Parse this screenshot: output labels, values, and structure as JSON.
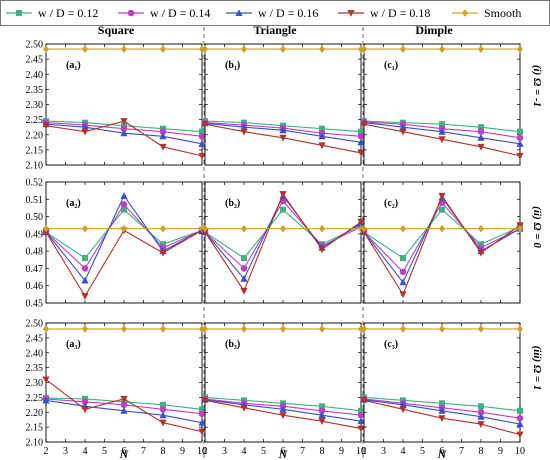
{
  "figure": {
    "legend": [
      {
        "label": "w / D = 0.12",
        "color": "#3fb27f",
        "marker": "square"
      },
      {
        "label": "w / D = 0.14",
        "color": "#c03fc6",
        "marker": "circle"
      },
      {
        "label": "w / D = 0.16",
        "color": "#3553c9",
        "marker": "triangle-up"
      },
      {
        "label": "w / D = 0.18",
        "color": "#b2322c",
        "marker": "triangle-down"
      },
      {
        "label": "Smooth",
        "color": "#c9a227",
        "marker": "diamond"
      }
    ],
    "column_titles": [
      "Square",
      "Triangle",
      "Dimple"
    ],
    "row_labels": [
      "(i) Ω = -1",
      "(ii) Ω = 0",
      "(iii) Ω = 1"
    ],
    "x_axis_label": "N"
  },
  "chart_data": [
    {
      "id": "a1",
      "type": "line",
      "panel_label": "(a₁)",
      "column": "Square",
      "row": "(i) Ω = -1",
      "x": [
        2,
        4,
        6,
        8,
        10
      ],
      "xlim": [
        2,
        10
      ],
      "ylim": [
        2.1,
        2.5
      ],
      "yticks": [
        2.1,
        2.15,
        2.2,
        2.25,
        2.3,
        2.35,
        2.4,
        2.45,
        2.5
      ],
      "xticks": [
        2,
        3,
        4,
        5,
        6,
        7,
        8,
        9,
        10
      ],
      "series": [
        {
          "name": "w / D = 0.12",
          "values": [
            2.245,
            2.24,
            2.23,
            2.22,
            2.21
          ]
        },
        {
          "name": "w / D = 0.14",
          "values": [
            2.24,
            2.232,
            2.22,
            2.21,
            2.195
          ]
        },
        {
          "name": "w / D = 0.16",
          "values": [
            2.235,
            2.225,
            2.205,
            2.195,
            2.17
          ]
        },
        {
          "name": "w / D = 0.18",
          "values": [
            2.23,
            2.21,
            2.245,
            2.16,
            2.13
          ]
        },
        {
          "name": "Smooth",
          "values": [
            2.483,
            2.483,
            2.483,
            2.483,
            2.483
          ]
        }
      ]
    },
    {
      "id": "b1",
      "type": "line",
      "panel_label": "(b₁)",
      "column": "Triangle",
      "row": "(i) Ω = -1",
      "x": [
        2,
        4,
        6,
        8,
        10
      ],
      "xlim": [
        2,
        10
      ],
      "ylim": [
        2.1,
        2.5
      ],
      "yticks": [
        2.1,
        2.15,
        2.2,
        2.25,
        2.3,
        2.35,
        2.4,
        2.45,
        2.5
      ],
      "xticks": [
        2,
        3,
        4,
        5,
        6,
        7,
        8,
        9,
        10
      ],
      "series": [
        {
          "name": "w / D = 0.12",
          "values": [
            2.245,
            2.24,
            2.23,
            2.22,
            2.21
          ]
        },
        {
          "name": "w / D = 0.14",
          "values": [
            2.24,
            2.232,
            2.222,
            2.205,
            2.195
          ]
        },
        {
          "name": "w / D = 0.16",
          "values": [
            2.238,
            2.225,
            2.215,
            2.195,
            2.175
          ]
        },
        {
          "name": "w / D = 0.18",
          "values": [
            2.235,
            2.21,
            2.19,
            2.165,
            2.14
          ]
        },
        {
          "name": "Smooth",
          "values": [
            2.483,
            2.483,
            2.483,
            2.483,
            2.483
          ]
        }
      ]
    },
    {
      "id": "c1",
      "type": "line",
      "panel_label": "(c₁)",
      "column": "Dimple",
      "row": "(i) Ω = -1",
      "x": [
        2,
        4,
        6,
        8,
        10
      ],
      "xlim": [
        2,
        10
      ],
      "ylim": [
        2.1,
        2.5
      ],
      "yticks": [
        2.1,
        2.15,
        2.2,
        2.25,
        2.3,
        2.35,
        2.4,
        2.45,
        2.5
      ],
      "xticks": [
        2,
        3,
        4,
        5,
        6,
        7,
        8,
        9,
        10
      ],
      "series": [
        {
          "name": "w / D = 0.12",
          "values": [
            2.245,
            2.24,
            2.235,
            2.225,
            2.21
          ]
        },
        {
          "name": "w / D = 0.14",
          "values": [
            2.242,
            2.235,
            2.22,
            2.21,
            2.19
          ]
        },
        {
          "name": "w / D = 0.16",
          "values": [
            2.24,
            2.225,
            2.21,
            2.19,
            2.17
          ]
        },
        {
          "name": "w / D = 0.18",
          "values": [
            2.235,
            2.21,
            2.185,
            2.16,
            2.13
          ]
        },
        {
          "name": "Smooth",
          "values": [
            2.483,
            2.483,
            2.483,
            2.483,
            2.483
          ]
        }
      ]
    },
    {
      "id": "a2",
      "type": "line",
      "panel_label": "(a₂)",
      "column": "Square",
      "row": "(ii) Ω = 0",
      "x": [
        2,
        4,
        6,
        8,
        10
      ],
      "xlim": [
        2,
        10
      ],
      "ylim": [
        0.45,
        0.52
      ],
      "yticks": [
        0.45,
        0.46,
        0.47,
        0.48,
        0.49,
        0.5,
        0.51,
        0.52
      ],
      "xticks": [
        2,
        3,
        4,
        5,
        6,
        7,
        8,
        9,
        10
      ],
      "series": [
        {
          "name": "w / D = 0.12",
          "values": [
            0.491,
            0.476,
            0.504,
            0.484,
            0.492
          ]
        },
        {
          "name": "w / D = 0.14",
          "values": [
            0.491,
            0.47,
            0.507,
            0.482,
            0.492
          ]
        },
        {
          "name": "w / D = 0.16",
          "values": [
            0.491,
            0.463,
            0.512,
            0.48,
            0.492
          ]
        },
        {
          "name": "w / D = 0.18",
          "values": [
            0.491,
            0.454,
            0.492,
            0.479,
            0.492
          ]
        },
        {
          "name": "Smooth",
          "values": [
            0.493,
            0.493,
            0.493,
            0.493,
            0.493
          ]
        }
      ]
    },
    {
      "id": "b2",
      "type": "line",
      "panel_label": "(b₂)",
      "column": "Triangle",
      "row": "(ii) Ω = 0",
      "x": [
        2,
        4,
        6,
        8,
        10
      ],
      "xlim": [
        2,
        10
      ],
      "ylim": [
        0.45,
        0.52
      ],
      "yticks": [
        0.45,
        0.46,
        0.47,
        0.48,
        0.49,
        0.5,
        0.51,
        0.52
      ],
      "xticks": [
        2,
        3,
        4,
        5,
        6,
        7,
        8,
        9,
        10
      ],
      "series": [
        {
          "name": "w / D = 0.12",
          "values": [
            0.491,
            0.476,
            0.504,
            0.484,
            0.495
          ]
        },
        {
          "name": "w / D = 0.14",
          "values": [
            0.491,
            0.47,
            0.509,
            0.483,
            0.494
          ]
        },
        {
          "name": "w / D = 0.16",
          "values": [
            0.491,
            0.464,
            0.512,
            0.482,
            0.496
          ]
        },
        {
          "name": "w / D = 0.18",
          "values": [
            0.491,
            0.457,
            0.513,
            0.481,
            0.497
          ]
        },
        {
          "name": "Smooth",
          "values": [
            0.493,
            0.493,
            0.493,
            0.493,
            0.493
          ]
        }
      ]
    },
    {
      "id": "c2",
      "type": "line",
      "panel_label": "(c₂)",
      "column": "Dimple",
      "row": "(ii) Ω = 0",
      "x": [
        2,
        4,
        6,
        8,
        10
      ],
      "xlim": [
        2,
        10
      ],
      "ylim": [
        0.45,
        0.52
      ],
      "yticks": [
        0.45,
        0.46,
        0.47,
        0.48,
        0.49,
        0.5,
        0.51,
        0.52
      ],
      "xticks": [
        2,
        3,
        4,
        5,
        6,
        7,
        8,
        9,
        10
      ],
      "series": [
        {
          "name": "w / D = 0.12",
          "values": [
            0.491,
            0.476,
            0.504,
            0.484,
            0.494
          ]
        },
        {
          "name": "w / D = 0.14",
          "values": [
            0.491,
            0.468,
            0.508,
            0.482,
            0.493
          ]
        },
        {
          "name": "w / D = 0.16",
          "values": [
            0.491,
            0.462,
            0.511,
            0.48,
            0.493
          ]
        },
        {
          "name": "w / D = 0.18",
          "values": [
            0.491,
            0.455,
            0.512,
            0.479,
            0.495
          ]
        },
        {
          "name": "Smooth",
          "values": [
            0.493,
            0.493,
            0.493,
            0.493,
            0.493
          ]
        }
      ]
    },
    {
      "id": "a3",
      "type": "line",
      "panel_label": "(a₃)",
      "column": "Square",
      "row": "(iii) Ω = 1",
      "x": [
        2,
        4,
        6,
        8,
        10
      ],
      "xlim": [
        2,
        10
      ],
      "ylim": [
        2.1,
        2.5
      ],
      "yticks": [
        2.1,
        2.15,
        2.2,
        2.25,
        2.3,
        2.35,
        2.4,
        2.45,
        2.5
      ],
      "xticks": [
        2,
        3,
        4,
        5,
        6,
        7,
        8,
        9,
        10
      ],
      "series": [
        {
          "name": "w / D = 0.12",
          "values": [
            2.248,
            2.245,
            2.235,
            2.225,
            2.21
          ]
        },
        {
          "name": "w / D = 0.14",
          "values": [
            2.245,
            2.235,
            2.225,
            2.21,
            2.195
          ]
        },
        {
          "name": "w / D = 0.16",
          "values": [
            2.24,
            2.22,
            2.205,
            2.19,
            2.165
          ]
        },
        {
          "name": "w / D = 0.18",
          "values": [
            2.31,
            2.21,
            2.245,
            2.165,
            2.135
          ]
        },
        {
          "name": "Smooth",
          "values": [
            2.48,
            2.48,
            2.48,
            2.48,
            2.48
          ]
        }
      ]
    },
    {
      "id": "b3",
      "type": "line",
      "panel_label": "(b₃)",
      "column": "Triangle",
      "row": "(iii) Ω = 1",
      "x": [
        2,
        4,
        6,
        8,
        10
      ],
      "xlim": [
        2,
        10
      ],
      "ylim": [
        2.1,
        2.5
      ],
      "yticks": [
        2.1,
        2.15,
        2.2,
        2.25,
        2.3,
        2.35,
        2.4,
        2.45,
        2.5
      ],
      "xticks": [
        2,
        3,
        4,
        5,
        6,
        7,
        8,
        9,
        10
      ],
      "series": [
        {
          "name": "w / D = 0.12",
          "values": [
            2.25,
            2.24,
            2.23,
            2.22,
            2.205
          ]
        },
        {
          "name": "w / D = 0.14",
          "values": [
            2.245,
            2.23,
            2.22,
            2.205,
            2.19
          ]
        },
        {
          "name": "w / D = 0.16",
          "values": [
            2.242,
            2.225,
            2.21,
            2.19,
            2.17
          ]
        },
        {
          "name": "w / D = 0.18",
          "values": [
            2.24,
            2.215,
            2.19,
            2.17,
            2.145
          ]
        },
        {
          "name": "Smooth",
          "values": [
            2.48,
            2.48,
            2.48,
            2.48,
            2.48
          ]
        }
      ]
    },
    {
      "id": "c3",
      "type": "line",
      "panel_label": "(c₃)",
      "column": "Dimple",
      "row": "(iii) Ω = 1",
      "x": [
        2,
        4,
        6,
        8,
        10
      ],
      "xlim": [
        2,
        10
      ],
      "ylim": [
        2.1,
        2.5
      ],
      "yticks": [
        2.1,
        2.15,
        2.2,
        2.25,
        2.3,
        2.35,
        2.4,
        2.45,
        2.5
      ],
      "xticks": [
        2,
        3,
        4,
        5,
        6,
        7,
        8,
        9,
        10
      ],
      "series": [
        {
          "name": "w / D = 0.12",
          "values": [
            2.25,
            2.24,
            2.23,
            2.22,
            2.205
          ]
        },
        {
          "name": "w / D = 0.14",
          "values": [
            2.245,
            2.23,
            2.215,
            2.2,
            2.18
          ]
        },
        {
          "name": "w / D = 0.16",
          "values": [
            2.242,
            2.225,
            2.205,
            2.185,
            2.16
          ]
        },
        {
          "name": "w / D = 0.18",
          "values": [
            2.24,
            2.21,
            2.18,
            2.16,
            2.125
          ]
        },
        {
          "name": "Smooth",
          "values": [
            2.48,
            2.48,
            2.48,
            2.48,
            2.48
          ]
        }
      ]
    }
  ]
}
